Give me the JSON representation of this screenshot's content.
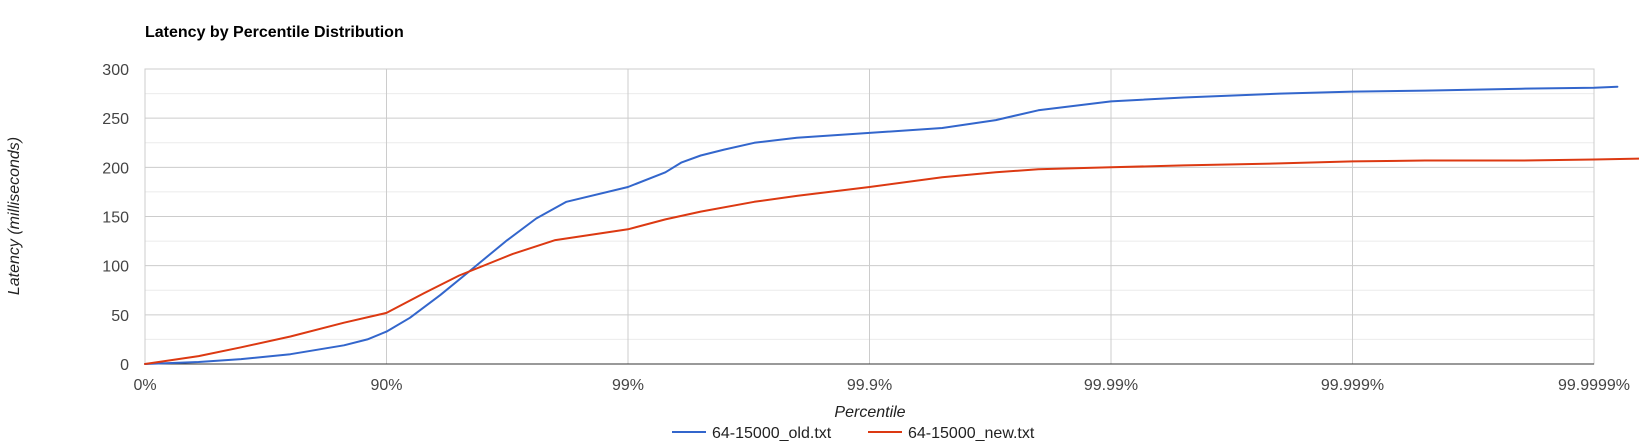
{
  "chart_data": {
    "type": "line",
    "title": "Latency by Percentile Distribution",
    "xlabel": "Percentile",
    "ylabel": "Latency (milliseconds)",
    "x_scale": "inverse-log (1 / (1 - percentile))",
    "x_ticks": [
      "0%",
      "90%",
      "99%",
      "99.9%",
      "99.99%",
      "99.999%",
      "99.9999%"
    ],
    "y_ticks": [
      0,
      50,
      100,
      150,
      200,
      250,
      300
    ],
    "ylim": [
      0,
      300
    ],
    "grid": true,
    "minor_grid_y": true,
    "legend_position": "bottom",
    "series": [
      {
        "name": "64-15000_old.txt",
        "color": "#3366cc",
        "points": [
          [
            "0%",
            0
          ],
          [
            "40%",
            2
          ],
          [
            "60%",
            5
          ],
          [
            "75%",
            10
          ],
          [
            "85%",
            19
          ],
          [
            "88%",
            25
          ],
          [
            "90%",
            33
          ],
          [
            "92%",
            47
          ],
          [
            "94%",
            70
          ],
          [
            "95.5%",
            95
          ],
          [
            "96.8%",
            125
          ],
          [
            "97.6%",
            148
          ],
          [
            "98.2%",
            165
          ],
          [
            "99%",
            180
          ],
          [
            "99.3%",
            195
          ],
          [
            "99.4%",
            205
          ],
          [
            "99.5%",
            212
          ],
          [
            "99.6%",
            218
          ],
          [
            "99.7%",
            225
          ],
          [
            "99.8%",
            230
          ],
          [
            "99.9%",
            235
          ],
          [
            "99.95%",
            240
          ],
          [
            "99.97%",
            248
          ],
          [
            "99.98%",
            258
          ],
          [
            "99.99%",
            267
          ],
          [
            "99.995%",
            271
          ],
          [
            "99.998%",
            275
          ],
          [
            "99.999%",
            277
          ],
          [
            "99.9995%",
            278
          ],
          [
            "99.9998%",
            280
          ],
          [
            "99.9999%",
            281
          ],
          [
            "99.99992%",
            282
          ]
        ]
      },
      {
        "name": "64-15000_new.txt",
        "color": "#dc3912",
        "points": [
          [
            "0%",
            0
          ],
          [
            "40%",
            8
          ],
          [
            "60%",
            17
          ],
          [
            "75%",
            28
          ],
          [
            "85%",
            42
          ],
          [
            "90%",
            52
          ],
          [
            "93%",
            72
          ],
          [
            "95%",
            90
          ],
          [
            "97%",
            112
          ],
          [
            "98%",
            126
          ],
          [
            "99%",
            137
          ],
          [
            "99.3%",
            147
          ],
          [
            "99.5%",
            155
          ],
          [
            "99.7%",
            165
          ],
          [
            "99.8%",
            171
          ],
          [
            "99.9%",
            180
          ],
          [
            "99.95%",
            190
          ],
          [
            "99.97%",
            195
          ],
          [
            "99.98%",
            198
          ],
          [
            "99.99%",
            200
          ],
          [
            "99.995%",
            202
          ],
          [
            "99.998%",
            204
          ],
          [
            "99.999%",
            206
          ],
          [
            "99.9995%",
            207
          ],
          [
            "99.9998%",
            207
          ],
          [
            "99.9999%",
            208
          ],
          [
            "99.99994%",
            209
          ]
        ]
      }
    ]
  }
}
